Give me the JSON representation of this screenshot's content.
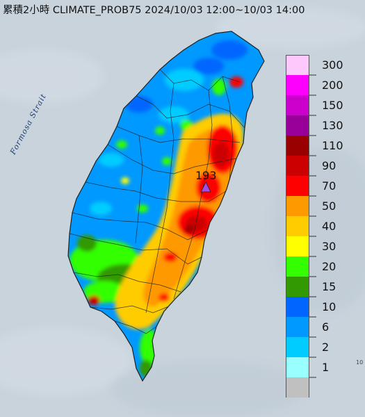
{
  "title": "累積2小時 CLIMATE_PROB75 2024/10/03 12:00~10/03 14:00",
  "max_marker": {
    "value_label": "193",
    "marker_color": "#a54ce6"
  },
  "strait_label": "Formosa Strait",
  "edge_text": "10",
  "legend": {
    "items": [
      {
        "label": "300",
        "color": "#fdc8fb"
      },
      {
        "label": "200",
        "color": "#fd00fd"
      },
      {
        "label": "150",
        "color": "#cc00cc"
      },
      {
        "label": "130",
        "color": "#990099"
      },
      {
        "label": "110",
        "color": "#990000"
      },
      {
        "label": "90",
        "color": "#cc0000"
      },
      {
        "label": "70",
        "color": "#ff0000"
      },
      {
        "label": "50",
        "color": "#ff9900"
      },
      {
        "label": "40",
        "color": "#ffcc00"
      },
      {
        "label": "30",
        "color": "#ffff00"
      },
      {
        "label": "20",
        "color": "#33ff00"
      },
      {
        "label": "15",
        "color": "#339900"
      },
      {
        "label": "10",
        "color": "#0066ff"
      },
      {
        "label": "6",
        "color": "#0099ff"
      },
      {
        "label": "2",
        "color": "#00ccff"
      },
      {
        "label": "1",
        "color": "#99ffff"
      },
      {
        "label": "",
        "color": "#c0c0c0"
      }
    ]
  },
  "colors": {
    "sea": "#c9d3dc",
    "county_border": "#202020"
  }
}
